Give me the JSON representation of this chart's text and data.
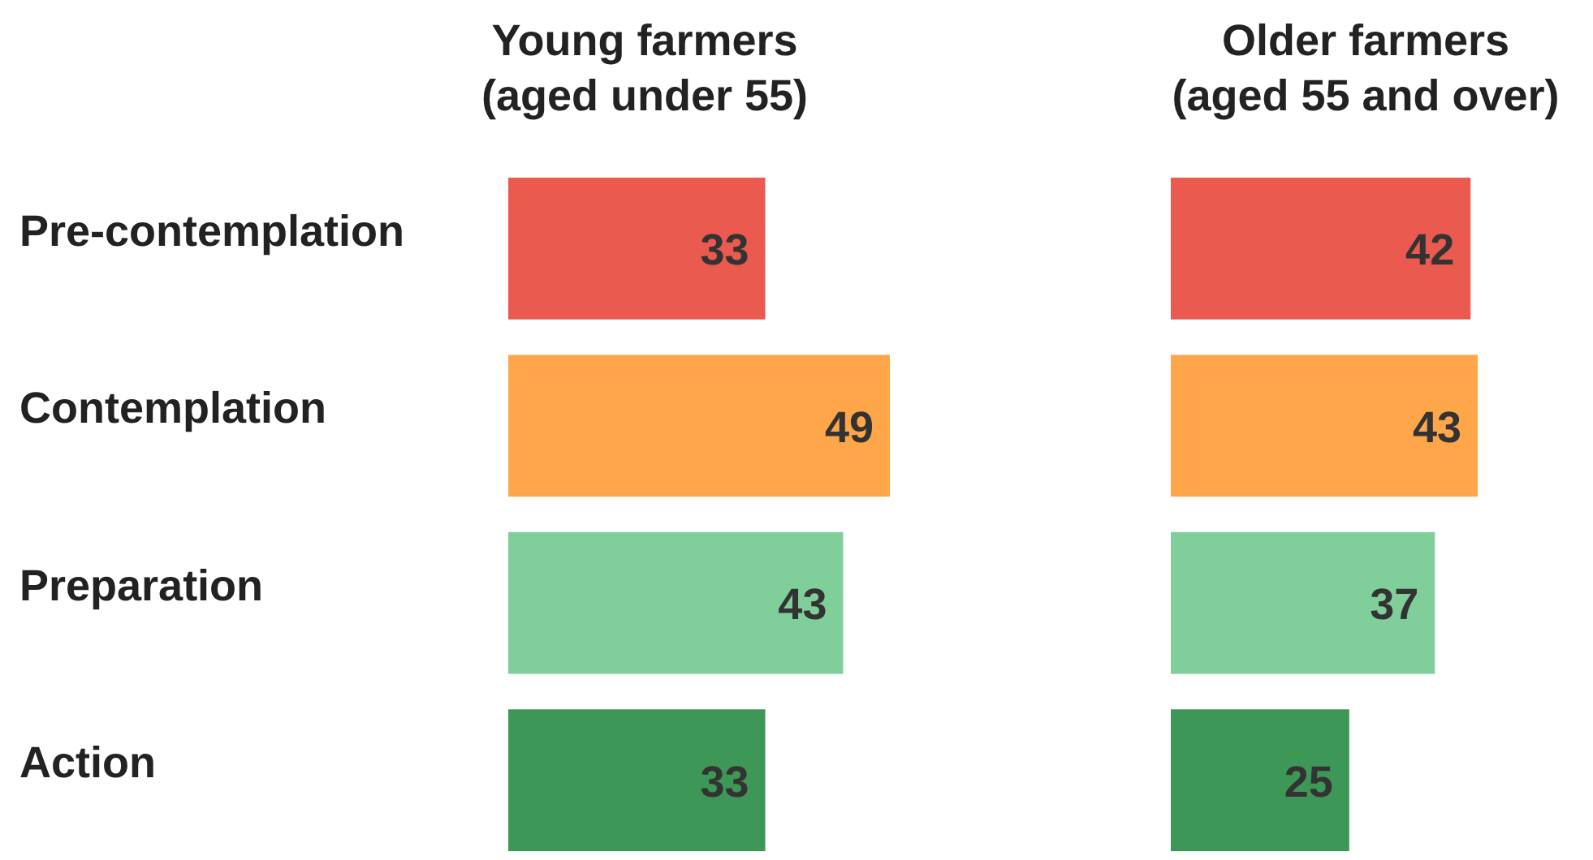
{
  "chart_data": [
    {
      "type": "bar",
      "orientation": "horizontal",
      "title": "Young farmers\n(aged under 55)",
      "categories": [
        "Pre-contemplation",
        "Contemplation",
        "Preparation",
        "Action"
      ],
      "values": [
        33,
        49,
        43,
        33
      ],
      "colors": [
        "#eb5a4e",
        "#ffa64a",
        "#80cf9a",
        "#3d9857"
      ],
      "data_labels": true,
      "tick_labels": "y"
    },
    {
      "type": "bar",
      "orientation": "horizontal",
      "title": "Older farmers\n(aged 55 and over)",
      "categories": [
        null,
        null,
        null,
        null
      ],
      "values": [
        42,
        43,
        37,
        25
      ],
      "colors": [
        "#eb5a4e",
        "#ffa64a",
        "#80cf9a",
        "#3d9857"
      ],
      "data_labels": true
    }
  ]
}
